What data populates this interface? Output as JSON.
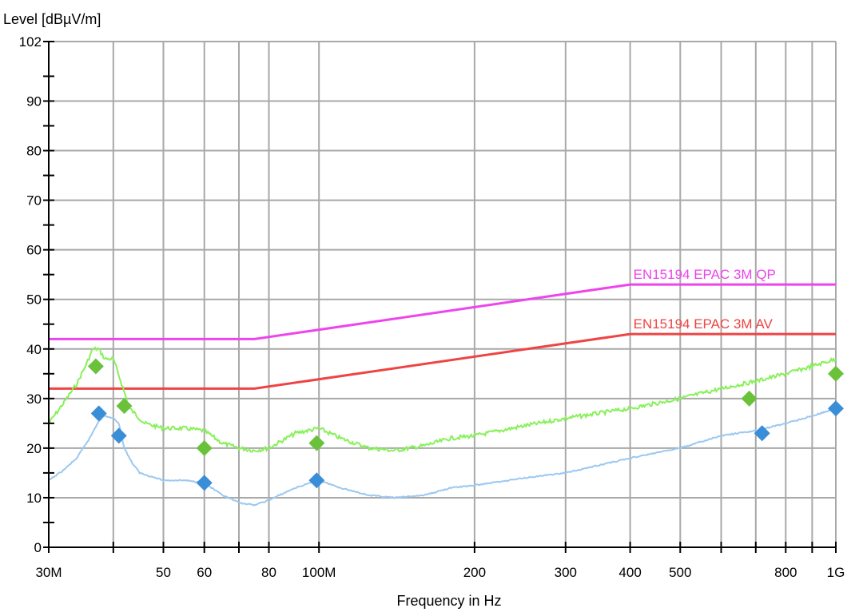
{
  "chart_data": {
    "type": "line",
    "ylabel": "Level [dBµV/m]",
    "xlabel": "Frequency in Hz",
    "x_scale": "log",
    "xlim": [
      30000000,
      1000000000
    ],
    "ylim": [
      0,
      102
    ],
    "grid": true,
    "y_ticks": [
      {
        "value": 0,
        "label": "0"
      },
      {
        "value": 10,
        "label": "10"
      },
      {
        "value": 20,
        "label": "20"
      },
      {
        "value": 30,
        "label": "30"
      },
      {
        "value": 40,
        "label": "40"
      },
      {
        "value": 50,
        "label": "50"
      },
      {
        "value": 60,
        "label": "60"
      },
      {
        "value": 70,
        "label": "70"
      },
      {
        "value": 80,
        "label": "80"
      },
      {
        "value": 90,
        "label": "90"
      },
      {
        "value": 102,
        "label": "102"
      }
    ],
    "y_minor_ticks": [
      5,
      15,
      25,
      35,
      45,
      55,
      65,
      75,
      85,
      95
    ],
    "x_ticks": [
      {
        "value": 30000000,
        "label": "30M"
      },
      {
        "value": 40000000,
        "label": ""
      },
      {
        "value": 50000000,
        "label": "50"
      },
      {
        "value": 60000000,
        "label": "60"
      },
      {
        "value": 70000000,
        "label": ""
      },
      {
        "value": 80000000,
        "label": "80"
      },
      {
        "value": 100000000,
        "label": "100M"
      },
      {
        "value": 200000000,
        "label": "200"
      },
      {
        "value": 300000000,
        "label": "300"
      },
      {
        "value": 400000000,
        "label": "400"
      },
      {
        "value": 500000000,
        "label": "500"
      },
      {
        "value": 600000000,
        "label": ""
      },
      {
        "value": 700000000,
        "label": ""
      },
      {
        "value": 800000000,
        "label": "800"
      },
      {
        "value": 900000000,
        "label": ""
      },
      {
        "value": 1000000000,
        "label": "1G"
      }
    ],
    "limits": [
      {
        "name": "EN15194  EPAC  3M  QP",
        "color": "#ee44ee",
        "x": [
          30000000,
          75000000,
          400000000,
          1000000000
        ],
        "y": [
          42,
          42,
          53,
          53
        ]
      },
      {
        "name": "EN15194  EPAC  3M  AV",
        "color": "#ee4444",
        "x": [
          30000000,
          75000000,
          400000000,
          1000000000
        ],
        "y": [
          32,
          32,
          43,
          43
        ]
      }
    ],
    "series": [
      {
        "color": "#88f05a",
        "x": [
          30000000,
          32000000,
          34000000,
          35500000,
          36500000,
          37500000,
          38500000,
          40000000,
          41500000,
          43000000,
          46000000,
          50000000,
          55000000,
          60000000,
          65000000,
          70000000,
          75000000,
          80000000,
          90000000,
          100000000,
          110000000,
          125000000,
          140000000,
          160000000,
          180000000,
          200000000,
          250000000,
          300000000,
          400000000,
          500000000,
          600000000,
          700000000,
          800000000,
          900000000,
          1000000000
        ],
        "y": [
          25,
          29,
          33,
          37,
          40,
          40,
          38,
          38,
          33,
          28,
          25,
          24,
          24,
          23.5,
          21,
          20,
          19.5,
          20,
          23,
          24,
          22,
          20,
          19.5,
          20.5,
          22,
          22.5,
          24.5,
          26,
          28,
          30,
          32,
          33.5,
          35,
          36.5,
          38
        ]
      },
      {
        "color": "#9cc8f0",
        "x": [
          30000000,
          32000000,
          34000000,
          36000000,
          37500000,
          38500000,
          40000000,
          41000000,
          42000000,
          43500000,
          45000000,
          50000000,
          55000000,
          60000000,
          65000000,
          70000000,
          75000000,
          80000000,
          90000000,
          100000000,
          110000000,
          125000000,
          140000000,
          160000000,
          180000000,
          200000000,
          250000000,
          300000000,
          400000000,
          500000000,
          600000000,
          700000000,
          800000000,
          900000000,
          1000000000
        ],
        "y": [
          13.5,
          15.5,
          18,
          22,
          25.5,
          26.5,
          26,
          25,
          20,
          17,
          15,
          13.5,
          13.5,
          13,
          10.5,
          9,
          8.5,
          9.5,
          12,
          13.5,
          12,
          10.5,
          10,
          10.5,
          12,
          12.5,
          14,
          15,
          18,
          20,
          22.5,
          23.5,
          25,
          26.5,
          28
        ]
      }
    ],
    "markers": [
      {
        "color": "#6ac23a",
        "x": [
          37000000,
          42000000,
          60000000,
          99000000,
          680000000,
          1000000000
        ],
        "y": [
          36.5,
          28.5,
          20,
          21,
          30,
          35
        ]
      },
      {
        "color": "#3a8ed8",
        "x": [
          37500000,
          41000000,
          60000000,
          99000000,
          720000000,
          1000000000
        ],
        "y": [
          27,
          22.5,
          13,
          13.5,
          23,
          28
        ]
      }
    ]
  }
}
